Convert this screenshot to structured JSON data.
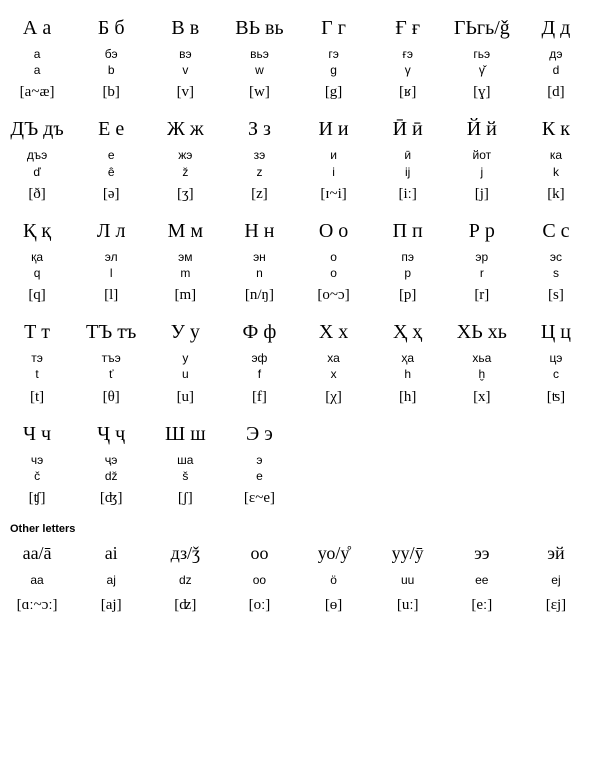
{
  "main": [
    {
      "letter": "А а",
      "name": "а",
      "translit": "a",
      "ipa": "[a~æ]"
    },
    {
      "letter": "Б б",
      "name": "бэ",
      "translit": "b",
      "ipa": "[b]"
    },
    {
      "letter": "В в",
      "name": "вэ",
      "translit": "v",
      "ipa": "[v]"
    },
    {
      "letter": "ВЬ вь",
      "name": "вьэ",
      "translit": "w",
      "ipa": "[w]"
    },
    {
      "letter": "Г г",
      "name": "гэ",
      "translit": "g",
      "ipa": "[g]"
    },
    {
      "letter": "Ғ ғ",
      "name": "ғэ",
      "translit": "γ",
      "ipa": "[ʁ]"
    },
    {
      "letter": "ГЬгь/ǧ",
      "name": "гьэ",
      "translit": "γ̌",
      "ipa": "[ɣ]"
    },
    {
      "letter": "Д д",
      "name": "дэ",
      "translit": "d",
      "ipa": "[d]"
    },
    {
      "letter": "ДЪ дъ",
      "name": "дъэ",
      "translit": "ď",
      "ipa": "[ð]"
    },
    {
      "letter": "Е е",
      "name": "е",
      "translit": "ê",
      "ipa": "[ə]"
    },
    {
      "letter": "Ж ж",
      "name": "жэ",
      "translit": "ž",
      "ipa": "[ʒ]"
    },
    {
      "letter": "З з",
      "name": "зэ",
      "translit": "z",
      "ipa": "[z]"
    },
    {
      "letter": "И и",
      "name": "и",
      "translit": "i",
      "ipa": "[ɪ~i]"
    },
    {
      "letter": "Ӣ ӣ",
      "name": "ӣ",
      "translit": "ij",
      "ipa": "[iː]"
    },
    {
      "letter": "Й й",
      "name": "йот",
      "translit": "j",
      "ipa": "[j]"
    },
    {
      "letter": "К к",
      "name": "ка",
      "translit": "k",
      "ipa": "[k]"
    },
    {
      "letter": "Қ қ",
      "name": "қа",
      "translit": "q",
      "ipa": "[q]"
    },
    {
      "letter": "Л л",
      "name": "эл",
      "translit": "l",
      "ipa": "[l]"
    },
    {
      "letter": "М м",
      "name": "эм",
      "translit": "m",
      "ipa": "[m]"
    },
    {
      "letter": "Н н",
      "name": "эн",
      "translit": "n",
      "ipa": "[n/ŋ]"
    },
    {
      "letter": "О о",
      "name": "о",
      "translit": "o",
      "ipa": "[o~ɔ]"
    },
    {
      "letter": "П п",
      "name": "пэ",
      "translit": "p",
      "ipa": "[p]"
    },
    {
      "letter": "Р р",
      "name": "эр",
      "translit": "r",
      "ipa": "[r]"
    },
    {
      "letter": "С с",
      "name": "эс",
      "translit": "s",
      "ipa": "[s]"
    },
    {
      "letter": "Т т",
      "name": "тэ",
      "translit": "t",
      "ipa": "[t]"
    },
    {
      "letter": "ТЪ тъ",
      "name": "тъэ",
      "translit": "ť",
      "ipa": "[θ]"
    },
    {
      "letter": "У у",
      "name": "у",
      "translit": "u",
      "ipa": "[u]"
    },
    {
      "letter": "Ф ф",
      "name": "эф",
      "translit": "f",
      "ipa": "[f]"
    },
    {
      "letter": "Х х",
      "name": "ха",
      "translit": "x",
      "ipa": "[χ]"
    },
    {
      "letter": "Ҳ ҳ",
      "name": "ҳа",
      "translit": "h",
      "ipa": "[h]"
    },
    {
      "letter": "ХЬ хь",
      "name": "хьа",
      "translit": "ḫ",
      "ipa": "[x]"
    },
    {
      "letter": "Ц ц",
      "name": "цэ",
      "translit": "c",
      "ipa": "[ʦ]"
    },
    {
      "letter": "Ч ч",
      "name": "чэ",
      "translit": "č",
      "ipa": "[ʧ]"
    },
    {
      "letter": "Ҷ ҷ",
      "name": "ҷэ",
      "translit": "dž",
      "ipa": "[ʤ]"
    },
    {
      "letter": "Ш ш",
      "name": "ша",
      "translit": "š",
      "ipa": "[ʃ]"
    },
    {
      "letter": "Э э",
      "name": "э",
      "translit": "e",
      "ipa": "[ɛ~e]"
    }
  ],
  "section_title": "Other letters",
  "other": [
    {
      "letter": "аа/ā",
      "name": "aa",
      "ipa": "[ɑː~ɔː]"
    },
    {
      "letter": "аi",
      "name": "aj",
      "ipa": "[aj]"
    },
    {
      "letter": "дз/ǯ",
      "name": "dz",
      "ipa": "[ʣ]"
    },
    {
      "letter": "оо",
      "name": "oo",
      "ipa": "[oː]"
    },
    {
      "letter": "уо/у̊",
      "name": "ö",
      "ipa": "[ɵ]"
    },
    {
      "letter": "уу/ӯ",
      "name": "uu",
      "ipa": "[uː]"
    },
    {
      "letter": "ээ",
      "name": "ee",
      "ipa": "[eː]"
    },
    {
      "letter": "эй",
      "name": "ej",
      "ipa": "[ɛj]"
    }
  ]
}
